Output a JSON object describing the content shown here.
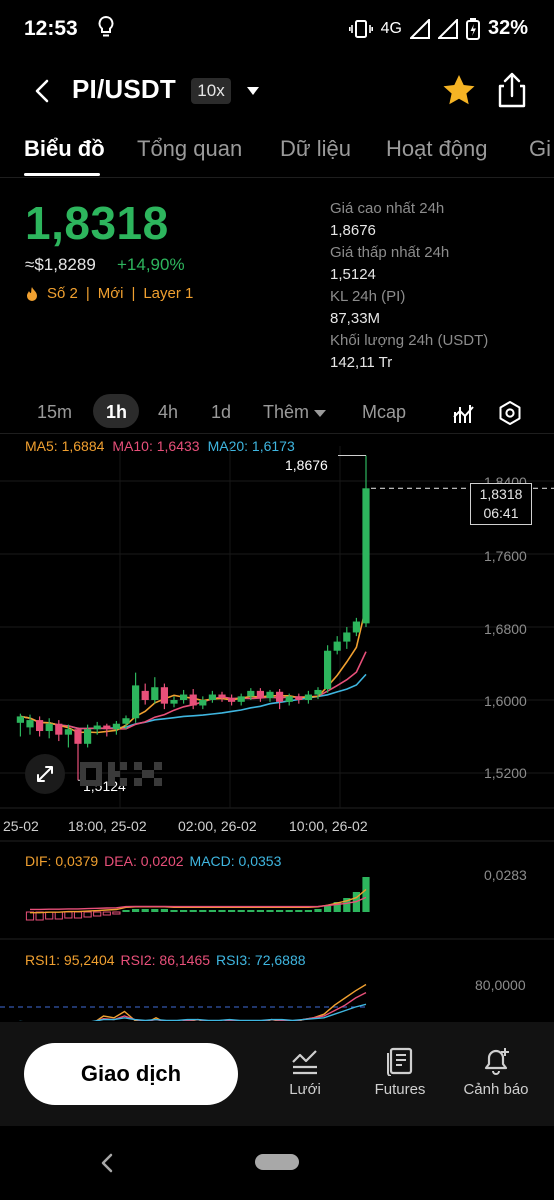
{
  "status_bar": {
    "time": "12:53",
    "network": "4G",
    "battery": "32%"
  },
  "header": {
    "pair": "PI/USDT",
    "leverage": "10x"
  },
  "tabs": [
    {
      "label": "Biểu đồ",
      "active": true
    },
    {
      "label": "Tổng quan",
      "active": false
    },
    {
      "label": "Dữ liệu",
      "active": false
    },
    {
      "label": "Hoạt động",
      "active": false
    },
    {
      "label": "Gi",
      "active": false
    }
  ],
  "ticker": {
    "price": "1,8318",
    "approx": "≈$1,8289",
    "change": "+14,90%",
    "tags": [
      "Số 2",
      "Mới",
      "Layer 1"
    ]
  },
  "stats": [
    {
      "label": "Giá cao nhất 24h",
      "value": "1,8676"
    },
    {
      "label": "Giá thấp nhất 24h",
      "value": "1,5124"
    },
    {
      "label": "KL 24h (PI)",
      "value": "87,33M"
    },
    {
      "label": "Khối lượng 24h (USDT)",
      "value": "142,11 Tr"
    }
  ],
  "intervals": [
    "15m",
    "1h",
    "4h",
    "1d",
    "Thêm",
    "Mcap"
  ],
  "active_interval": "1h",
  "ma_legend": {
    "ma5": "MA5: 1,6884",
    "ma10": "MA10: 1,6433",
    "ma20": "MA20: 1,6173"
  },
  "chart_labels": {
    "high": "1,8676",
    "low": "1,5124",
    "last_price": "1,8318",
    "countdown": "06:41",
    "y_ticks": [
      "1,8400",
      "1,7600",
      "1,6800",
      "1,6000",
      "1,5200"
    ],
    "x_ticks": [
      "25-02",
      "18:00, 25-02",
      "02:00, 26-02",
      "10:00, 26-02"
    ],
    "macd_tick": "0,0283",
    "rsi_tick": "80,0000"
  },
  "macd_legend": {
    "dif": "DIF: 0,0379",
    "dea": "DEA: 0,0202",
    "macd": "MACD: 0,0353"
  },
  "rsi_legend": {
    "rsi1": "RSI1: 95,2404",
    "rsi2": "RSI2: 86,1465",
    "rsi3": "RSI3: 72,6888"
  },
  "colors": {
    "up": "#2db55d",
    "down": "#e8507a",
    "ma5": "#f0a030",
    "ma10": "#e8507a",
    "ma20": "#3fb6e0",
    "accent": "#f0a030"
  },
  "bottom_bar": {
    "trade": "Giao dịch",
    "grid": "Lưới",
    "futures": "Futures",
    "alert": "Cảnh báo"
  },
  "chart_data": {
    "type": "candlestick",
    "y_unit": "USDT",
    "ylim": [
      1.5,
      1.88
    ],
    "candles": [
      [
        1.575,
        1.582,
        1.56,
        1.585
      ],
      [
        1.57,
        1.578,
        1.562,
        1.584
      ],
      [
        1.578,
        1.566,
        1.56,
        1.582
      ],
      [
        1.566,
        1.574,
        1.558,
        1.58
      ],
      [
        1.574,
        1.562,
        1.555,
        1.578
      ],
      [
        1.562,
        1.568,
        1.548,
        1.573
      ],
      [
        1.568,
        1.552,
        1.512,
        1.57
      ],
      [
        1.552,
        1.568,
        1.548,
        1.573
      ],
      [
        1.568,
        1.572,
        1.562,
        1.576
      ],
      [
        1.572,
        1.568,
        1.56,
        1.574
      ],
      [
        1.568,
        1.574,
        1.562,
        1.577
      ],
      [
        1.574,
        1.58,
        1.568,
        1.583
      ],
      [
        1.58,
        1.616,
        1.575,
        1.63
      ],
      [
        1.61,
        1.6,
        1.595,
        1.618
      ],
      [
        1.6,
        1.614,
        1.596,
        1.625
      ],
      [
        1.614,
        1.596,
        1.59,
        1.618
      ],
      [
        1.596,
        1.6,
        1.592,
        1.604
      ],
      [
        1.6,
        1.606,
        1.596,
        1.611
      ],
      [
        1.606,
        1.594,
        1.59,
        1.612
      ],
      [
        1.594,
        1.6,
        1.59,
        1.604
      ],
      [
        1.6,
        1.606,
        1.597,
        1.61
      ],
      [
        1.606,
        1.602,
        1.598,
        1.609
      ],
      [
        1.602,
        1.598,
        1.594,
        1.606
      ],
      [
        1.598,
        1.604,
        1.594,
        1.607
      ],
      [
        1.604,
        1.61,
        1.6,
        1.613
      ],
      [
        1.61,
        1.602,
        1.598,
        1.613
      ],
      [
        1.602,
        1.609,
        1.598,
        1.611
      ],
      [
        1.609,
        1.598,
        1.59,
        1.612
      ],
      [
        1.598,
        1.604,
        1.594,
        1.607
      ],
      [
        1.604,
        1.6,
        1.596,
        1.607
      ],
      [
        1.6,
        1.606,
        1.596,
        1.61
      ],
      [
        1.606,
        1.611,
        1.601,
        1.614
      ],
      [
        1.612,
        1.654,
        1.608,
        1.66
      ],
      [
        1.654,
        1.664,
        1.65,
        1.67
      ],
      [
        1.664,
        1.674,
        1.656,
        1.68
      ],
      [
        1.674,
        1.686,
        1.67,
        1.69
      ],
      [
        1.684,
        1.832,
        1.68,
        1.868
      ]
    ],
    "macd_hist": [
      -0.008,
      -0.008,
      -0.007,
      -0.007,
      -0.006,
      -0.006,
      -0.005,
      -0.004,
      -0.003,
      -0.002,
      0.002,
      0.003,
      0.003,
      0.003,
      0.003,
      0.002,
      0.002,
      0.002,
      0.002,
      0.002,
      0.002,
      0.002,
      0.002,
      0.002,
      0.002,
      0.002,
      0.002,
      0.002,
      0.002,
      0.002,
      0.003,
      0.006,
      0.01,
      0.014,
      0.02,
      0.035
    ],
    "rsi1": [
      48,
      44,
      42,
      45,
      40,
      46,
      44,
      52,
      60,
      58,
      65,
      55,
      52,
      58,
      52,
      50,
      54,
      56,
      52,
      50,
      54,
      52,
      50,
      52,
      56,
      54,
      52,
      56,
      58,
      62,
      72,
      80,
      88,
      95
    ],
    "rsi2": [
      52,
      50,
      48,
      50,
      47,
      50,
      49,
      53,
      57,
      56,
      60,
      56,
      54,
      56,
      54,
      53,
      55,
      56,
      54,
      53,
      55,
      54,
      53,
      54,
      56,
      55,
      54,
      56,
      58,
      60,
      66,
      72,
      80,
      86
    ],
    "rsi3": [
      54,
      53,
      52,
      52,
      51,
      52,
      52,
      54,
      56,
      56,
      58,
      56,
      55,
      56,
      55,
      55,
      56,
      56,
      55,
      55,
      56,
      55,
      55,
      55,
      56,
      56,
      55,
      56,
      57,
      58,
      62,
      66,
      70,
      73
    ]
  }
}
